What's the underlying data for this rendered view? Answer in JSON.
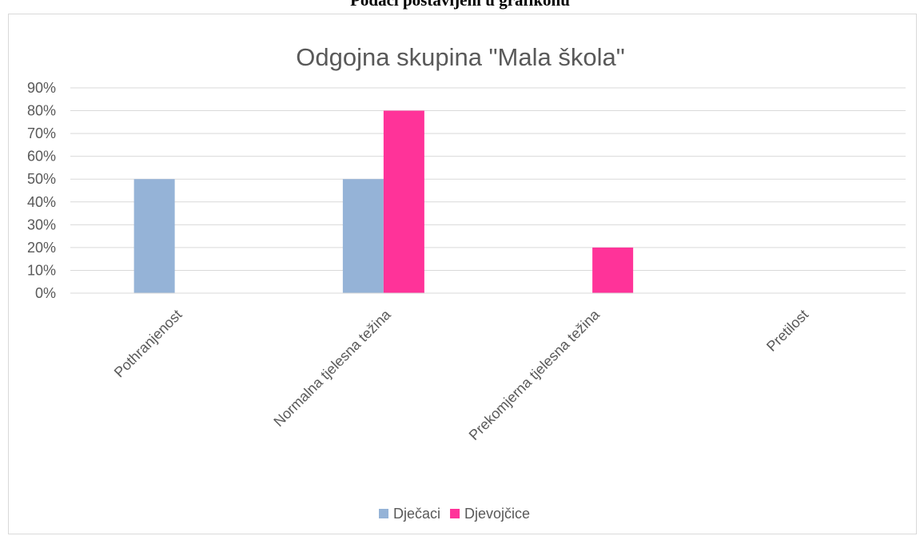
{
  "document": {
    "caption_fragment": "Podaci postavljeni u grafikonu"
  },
  "chart_data": {
    "type": "bar",
    "title": "Odgojna skupina \"Mala škola\"",
    "xlabel": "",
    "ylabel": "",
    "categories": [
      "Pothranjenost",
      "Normalna tjelesna težina",
      "Prekomjerna tjelesna težina",
      "Pretilost"
    ],
    "series": [
      {
        "name": "Dječaci",
        "color": "#95b3d7",
        "values": [
          50,
          50,
          0,
          0
        ]
      },
      {
        "name": "Djevojčice",
        "color": "#ff3399",
        "values": [
          0,
          80,
          20,
          0
        ]
      }
    ],
    "ylim": [
      0,
      90
    ],
    "yticks": [
      0,
      10,
      20,
      30,
      40,
      50,
      60,
      70,
      80,
      90
    ],
    "ytick_labels": [
      "0%",
      "10%",
      "20%",
      "30%",
      "40%",
      "50%",
      "60%",
      "70%",
      "80%",
      "90%"
    ],
    "grid": true,
    "legend_position": "bottom"
  }
}
